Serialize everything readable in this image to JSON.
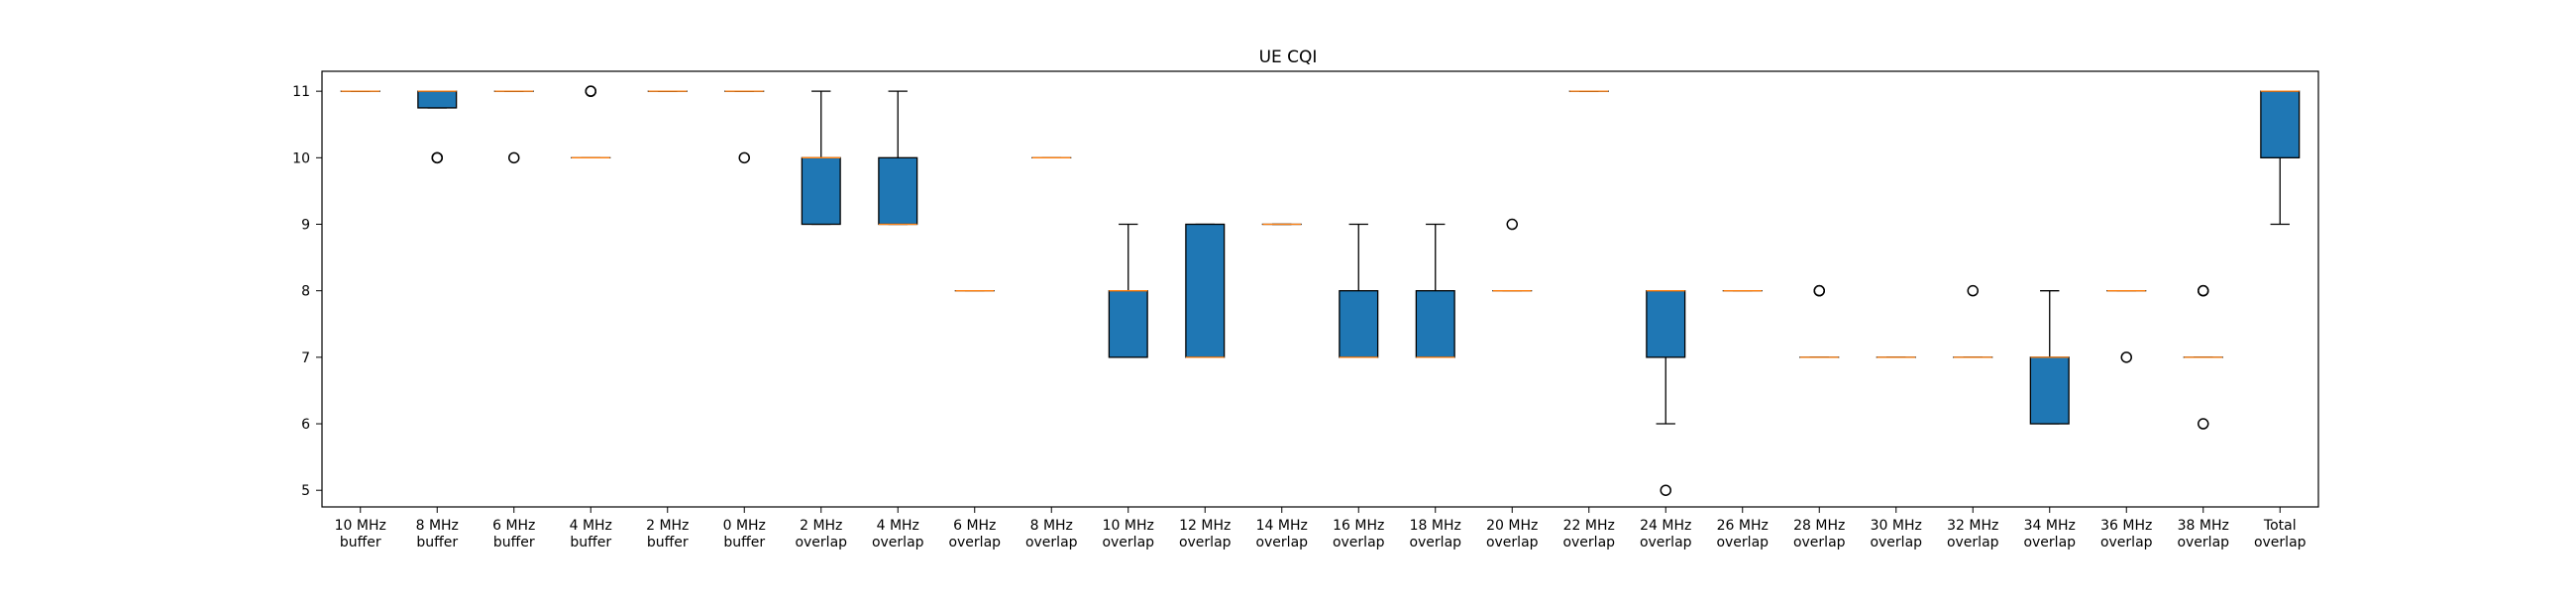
{
  "colors": {
    "box_fill": "#1f77b4",
    "median": "#ff7f0e",
    "edge": "#000000"
  },
  "chart_data": {
    "type": "box",
    "title": "UE CQI",
    "xlabel": "",
    "ylabel": "",
    "ylim": [
      4.75,
      11.3
    ],
    "yticks": [
      5,
      6,
      7,
      8,
      9,
      10,
      11
    ],
    "grid": false,
    "categories": [
      [
        "10 MHz",
        "buffer"
      ],
      [
        "8 MHz",
        "buffer"
      ],
      [
        "6 MHz",
        "buffer"
      ],
      [
        "4 MHz",
        "buffer"
      ],
      [
        "2 MHz",
        "buffer"
      ],
      [
        "0 MHz",
        "buffer"
      ],
      [
        "2 MHz",
        "overlap"
      ],
      [
        "4 MHz",
        "overlap"
      ],
      [
        "6 MHz",
        "overlap"
      ],
      [
        "8 MHz",
        "overlap"
      ],
      [
        "10 MHz",
        "overlap"
      ],
      [
        "12 MHz",
        "overlap"
      ],
      [
        "14 MHz",
        "overlap"
      ],
      [
        "16 MHz",
        "overlap"
      ],
      [
        "18 MHz",
        "overlap"
      ],
      [
        "20 MHz",
        "overlap"
      ],
      [
        "22 MHz",
        "overlap"
      ],
      [
        "24 MHz",
        "overlap"
      ],
      [
        "26 MHz",
        "overlap"
      ],
      [
        "28 MHz",
        "overlap"
      ],
      [
        "30 MHz",
        "overlap"
      ],
      [
        "32 MHz",
        "overlap"
      ],
      [
        "34 MHz",
        "overlap"
      ],
      [
        "36 MHz",
        "overlap"
      ],
      [
        "38 MHz",
        "overlap"
      ],
      [
        "Total",
        "overlap"
      ]
    ],
    "boxes": [
      {
        "q1": 11,
        "median": 11,
        "q3": 11,
        "whisker_low": 11,
        "whisker_high": 11,
        "outliers": []
      },
      {
        "q1": 10.75,
        "median": 11,
        "q3": 11,
        "whisker_low": 10.75,
        "whisker_high": 11,
        "outliers": [
          10,
          10
        ]
      },
      {
        "q1": 11,
        "median": 11,
        "q3": 11,
        "whisker_low": 11,
        "whisker_high": 11,
        "outliers": [
          10
        ]
      },
      {
        "q1": 10,
        "median": 10,
        "q3": 10,
        "whisker_low": 10,
        "whisker_high": 10,
        "outliers": [
          11,
          11
        ]
      },
      {
        "q1": 11,
        "median": 11,
        "q3": 11,
        "whisker_low": 11,
        "whisker_high": 11,
        "outliers": []
      },
      {
        "q1": 11,
        "median": 11,
        "q3": 11,
        "whisker_low": 11,
        "whisker_high": 11,
        "outliers": [
          10
        ]
      },
      {
        "q1": 9,
        "median": 10,
        "q3": 10,
        "whisker_low": 9,
        "whisker_high": 11,
        "outliers": []
      },
      {
        "q1": 9,
        "median": 9,
        "q3": 10,
        "whisker_low": 9,
        "whisker_high": 11,
        "outliers": []
      },
      {
        "q1": 8,
        "median": 8,
        "q3": 8,
        "whisker_low": 8,
        "whisker_high": 8,
        "outliers": []
      },
      {
        "q1": 10,
        "median": 10,
        "q3": 10,
        "whisker_low": 10,
        "whisker_high": 10,
        "outliers": []
      },
      {
        "q1": 7,
        "median": 8,
        "q3": 8,
        "whisker_low": 7,
        "whisker_high": 9,
        "outliers": []
      },
      {
        "q1": 7,
        "median": 7,
        "q3": 9,
        "whisker_low": 7,
        "whisker_high": 9,
        "outliers": []
      },
      {
        "q1": 9,
        "median": 9,
        "q3": 9,
        "whisker_low": 9,
        "whisker_high": 9,
        "outliers": []
      },
      {
        "q1": 7,
        "median": 7,
        "q3": 8,
        "whisker_low": 7,
        "whisker_high": 9,
        "outliers": []
      },
      {
        "q1": 7,
        "median": 7,
        "q3": 8,
        "whisker_low": 7,
        "whisker_high": 9,
        "outliers": []
      },
      {
        "q1": 8,
        "median": 8,
        "q3": 8,
        "whisker_low": 8,
        "whisker_high": 8,
        "outliers": [
          9
        ]
      },
      {
        "q1": 11,
        "median": 11,
        "q3": 11,
        "whisker_low": 11,
        "whisker_high": 11,
        "outliers": []
      },
      {
        "q1": 7,
        "median": 8,
        "q3": 8,
        "whisker_low": 6,
        "whisker_high": 8,
        "outliers": [
          5
        ]
      },
      {
        "q1": 8,
        "median": 8,
        "q3": 8,
        "whisker_low": 8,
        "whisker_high": 8,
        "outliers": []
      },
      {
        "q1": 7,
        "median": 7,
        "q3": 7,
        "whisker_low": 7,
        "whisker_high": 7,
        "outliers": [
          8,
          8
        ]
      },
      {
        "q1": 7,
        "median": 7,
        "q3": 7,
        "whisker_low": 7,
        "whisker_high": 7,
        "outliers": []
      },
      {
        "q1": 7,
        "median": 7,
        "q3": 7,
        "whisker_low": 7,
        "whisker_high": 7,
        "outliers": [
          8
        ]
      },
      {
        "q1": 6,
        "median": 7,
        "q3": 7,
        "whisker_low": 6,
        "whisker_high": 8,
        "outliers": []
      },
      {
        "q1": 8,
        "median": 8,
        "q3": 8,
        "whisker_low": 8,
        "whisker_high": 8,
        "outliers": [
          7
        ]
      },
      {
        "q1": 7,
        "median": 7,
        "q3": 7,
        "whisker_low": 7,
        "whisker_high": 7,
        "outliers": [
          8,
          8,
          6
        ]
      },
      {
        "q1": 10,
        "median": 11,
        "q3": 11,
        "whisker_low": 9,
        "whisker_high": 11,
        "outliers": []
      }
    ]
  }
}
